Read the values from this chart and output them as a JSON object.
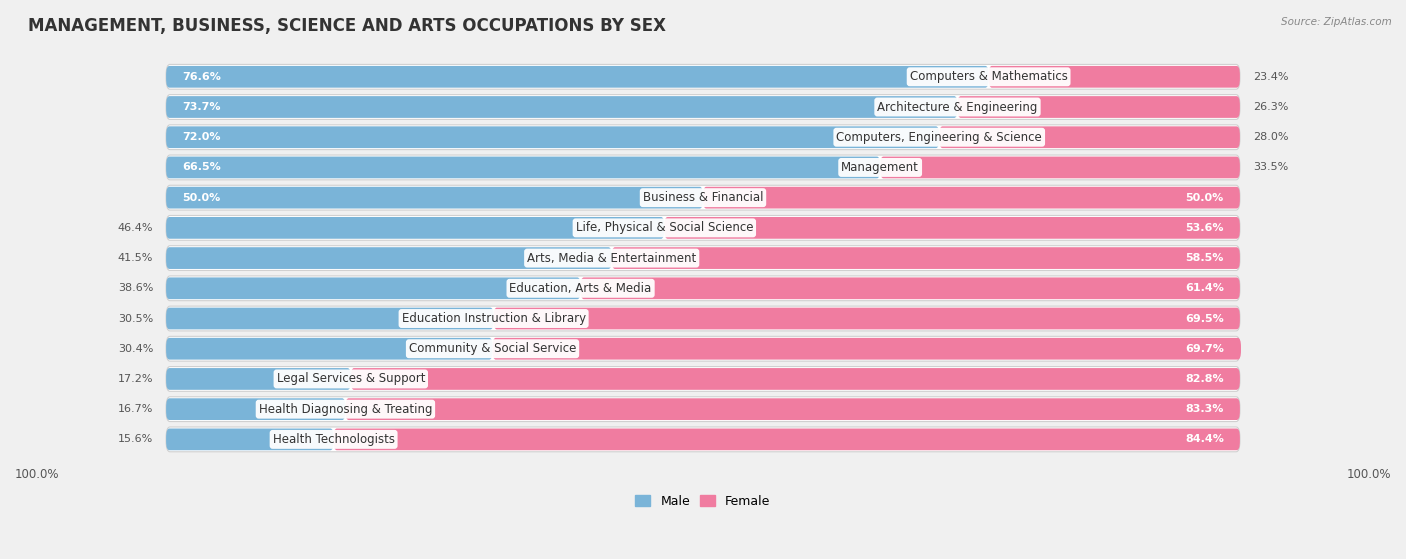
{
  "title": "MANAGEMENT, BUSINESS, SCIENCE AND ARTS OCCUPATIONS BY SEX",
  "source": "Source: ZipAtlas.com",
  "categories": [
    "Computers & Mathematics",
    "Architecture & Engineering",
    "Computers, Engineering & Science",
    "Management",
    "Business & Financial",
    "Life, Physical & Social Science",
    "Arts, Media & Entertainment",
    "Education, Arts & Media",
    "Education Instruction & Library",
    "Community & Social Service",
    "Legal Services & Support",
    "Health Diagnosing & Treating",
    "Health Technologists"
  ],
  "male_pct": [
    76.6,
    73.7,
    72.0,
    66.5,
    50.0,
    46.4,
    41.5,
    38.6,
    30.5,
    30.4,
    17.2,
    16.7,
    15.6
  ],
  "female_pct": [
    23.4,
    26.3,
    28.0,
    33.5,
    50.0,
    53.6,
    58.5,
    61.4,
    69.5,
    69.7,
    82.8,
    83.3,
    84.4
  ],
  "male_color": "#7ab4d8",
  "female_color": "#f07ca0",
  "bg_color": "#f0f0f0",
  "bar_bg_color": "#ffffff",
  "title_fontsize": 12,
  "label_fontsize": 8.5,
  "pct_fontsize": 8.0,
  "axis_fontsize": 8.5,
  "legend_fontsize": 9
}
